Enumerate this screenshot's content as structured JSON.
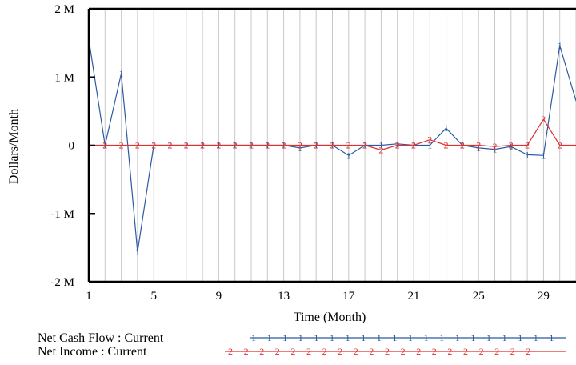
{
  "chart_data": {
    "type": "line",
    "xlabel": "Time (Month)",
    "ylabel": "Dollars/Month",
    "xlim": [
      1,
      31
    ],
    "ylim": [
      -2000000,
      2000000
    ],
    "x_ticks": [
      "1",
      "5",
      "9",
      "13",
      "17",
      "21",
      "25",
      "29"
    ],
    "y_ticks": [
      "2 M",
      "1 M",
      "0",
      "-1 M",
      "-2 M"
    ],
    "grid": "vertical",
    "legend_position": "bottom",
    "x": [
      1,
      2,
      3,
      4,
      5,
      6,
      7,
      8,
      9,
      10,
      11,
      12,
      13,
      14,
      15,
      16,
      17,
      18,
      19,
      20,
      21,
      22,
      23,
      24,
      25,
      26,
      27,
      28,
      29,
      30,
      31
    ],
    "series": [
      {
        "name": "Net Cash Flow : Current",
        "marker": "1",
        "color": "#2c5aa0",
        "values": [
          1550000,
          0,
          1050000,
          -1560000,
          0,
          0,
          0,
          0,
          0,
          0,
          0,
          0,
          0,
          -40000,
          0,
          0,
          -150000,
          0,
          0,
          20000,
          0,
          0,
          250000,
          0,
          -40000,
          -60000,
          -20000,
          -140000,
          -150000,
          1460000,
          650000
        ]
      },
      {
        "name": "Net Income : Current",
        "marker": "2",
        "color": "#e03030",
        "values": [
          0,
          0,
          0,
          0,
          0,
          0,
          0,
          0,
          0,
          0,
          0,
          0,
          0,
          0,
          0,
          0,
          0,
          0,
          -70000,
          0,
          0,
          80000,
          0,
          0,
          0,
          -20000,
          0,
          0,
          380000,
          0,
          0
        ]
      }
    ]
  }
}
